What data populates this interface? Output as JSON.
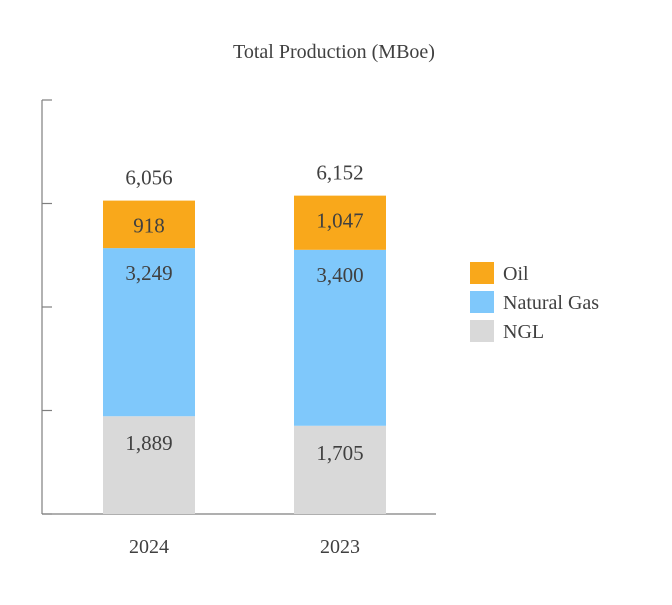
{
  "chart_data": {
    "type": "bar",
    "stacked": true,
    "title": "Total Production (MBoe)",
    "xlabel": "",
    "ylabel": "",
    "categories": [
      "2024",
      "2023"
    ],
    "series": [
      {
        "name": "NGL",
        "values": [
          1889,
          1705
        ],
        "labels": [
          "1,889",
          "1,705"
        ],
        "color": "#d9d9d9"
      },
      {
        "name": "Natural Gas",
        "values": [
          3249,
          3400
        ],
        "labels": [
          "3,249",
          "3,400"
        ],
        "color": "#7fc8fb"
      },
      {
        "name": "Oil",
        "values": [
          918,
          1047
        ],
        "labels": [
          "918",
          "1,047"
        ],
        "color": "#f9a81b"
      }
    ],
    "totals": [
      6056,
      6152
    ],
    "total_labels": [
      "6,056",
      "6,152"
    ],
    "ylim": [
      0,
      8000
    ],
    "y_ticks": [
      0,
      2000,
      4000,
      6000,
      8000
    ],
    "grid": false,
    "legend": {
      "position": "right",
      "order": [
        "Oil",
        "Natural Gas",
        "NGL"
      ]
    }
  }
}
